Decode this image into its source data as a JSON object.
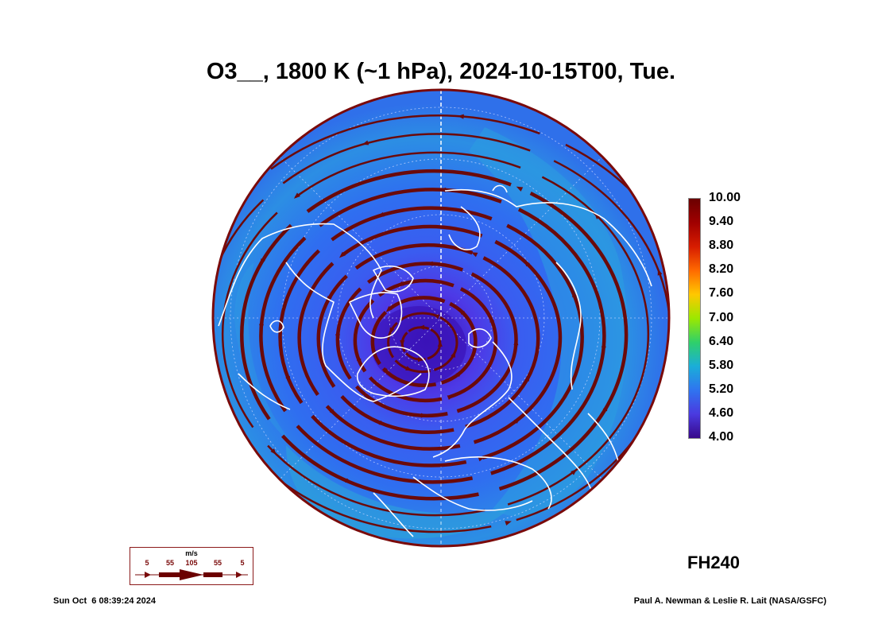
{
  "title": "O3__, 1800 K (~1 hPa), 2024-10-15T00, Tue.",
  "colorbar": {
    "ticks": [
      "10.00",
      "9.40",
      "8.80",
      "8.20",
      "7.60",
      "7.00",
      "6.40",
      "5.80",
      "5.20",
      "4.60",
      "4.00"
    ],
    "colors": [
      "#6b0000",
      "#a00000",
      "#d61c00",
      "#ff6a00",
      "#ffc800",
      "#9be800",
      "#2fd06a",
      "#1aaed8",
      "#2f74f0",
      "#4a3ae0",
      "#38088a"
    ]
  },
  "map": {
    "projection": "north-polar-stereographic",
    "field_colors": {
      "vortex_core": "#3a12b8",
      "inner": "#4d39e6",
      "mid": "#2f6ef0",
      "outer": "#2c9ee0",
      "edge": "#2da6d8"
    },
    "streamline_color": "#6b0a0a",
    "coastline_color": "#ffffff",
    "grid_color": "#cfd8ff"
  },
  "wind_legend": {
    "unit": "m/s",
    "labels": [
      "5",
      "55",
      "105",
      "55",
      "5"
    ]
  },
  "forecast_hour": "FH240",
  "timestamp": "Sun Oct  6 08:39:24 2024",
  "credit": "Paul A. Newman & Leslie R. Lait (NASA/GSFC)"
}
